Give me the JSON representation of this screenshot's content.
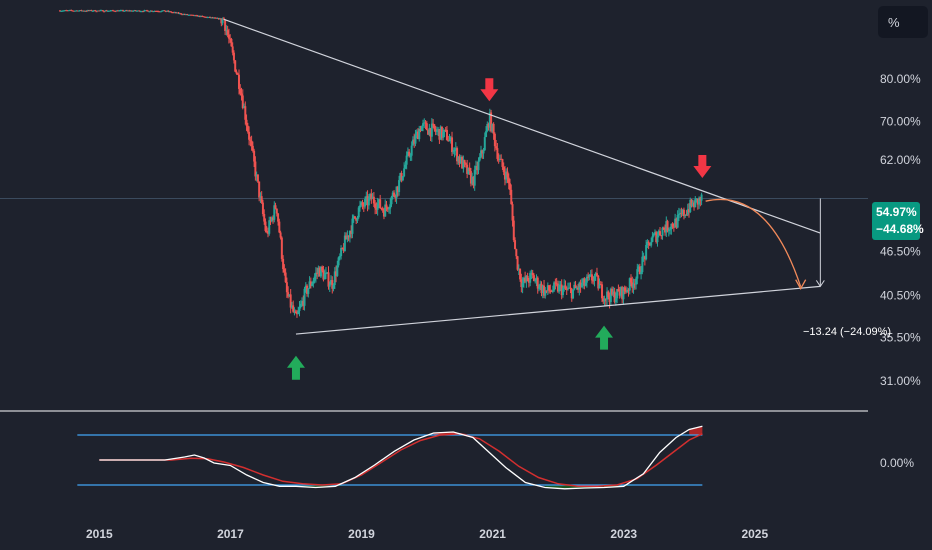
{
  "unit_button": "%",
  "price_badge": {
    "value": "54.97%",
    "change": "−44.68%"
  },
  "projection_label": "−13.24 (−24.09%)",
  "oscillator": {
    "zero_label": "0.00%"
  },
  "colors": {
    "background": "#1e222d",
    "up_candle": "#26a69a",
    "down_candle": "#ef5350",
    "trendline": "#d1d4dc",
    "projection_curve": "#f28a5a",
    "arrow_down": "#f23645",
    "arrow_up": "#22ab5b",
    "osc_fast": "#ffffff",
    "osc_slow": "#d32f2f",
    "osc_band": "#42a5f5",
    "osc_fill_top": "#c62828",
    "osc_fill_bottom": "#1b5e20"
  },
  "chart_data": {
    "type": "candlestick",
    "scale": "log",
    "y_unit": "%",
    "ylim": [
      29,
      100
    ],
    "xlim": [
      2014.4,
      2026.3
    ],
    "y_ticks": [
      {
        "value": 80,
        "label": "80.00%"
      },
      {
        "value": 70,
        "label": "70.00%"
      },
      {
        "value": 62,
        "label": "62.00%"
      },
      {
        "value": 46.5,
        "label": "46.50%"
      },
      {
        "value": 40.5,
        "label": "40.50%"
      },
      {
        "value": 35.5,
        "label": "35.50%"
      },
      {
        "value": 31,
        "label": "31.00%"
      }
    ],
    "x_ticks": [
      {
        "value": 2015,
        "label": "2015"
      },
      {
        "value": 2017,
        "label": "2017"
      },
      {
        "value": 2019,
        "label": "2019"
      },
      {
        "value": 2021,
        "label": "2021"
      },
      {
        "value": 2023,
        "label": "2023"
      },
      {
        "value": 2025,
        "label": "2025"
      }
    ],
    "current_value": 54.97,
    "anchors": [
      [
        2014.4,
        99.2
      ],
      [
        2016.0,
        99.1
      ],
      [
        2016.3,
        98.0
      ],
      [
        2016.9,
        96.5
      ],
      [
        2017.15,
        78
      ],
      [
        2017.35,
        62
      ],
      [
        2017.55,
        49
      ],
      [
        2017.7,
        54
      ],
      [
        2017.85,
        41
      ],
      [
        2018.0,
        37.5
      ],
      [
        2018.15,
        41
      ],
      [
        2018.35,
        44
      ],
      [
        2018.55,
        42
      ],
      [
        2018.75,
        48
      ],
      [
        2018.95,
        53
      ],
      [
        2019.15,
        55
      ],
      [
        2019.35,
        53
      ],
      [
        2019.55,
        57
      ],
      [
        2019.75,
        64
      ],
      [
        2019.9,
        69
      ],
      [
        2020.1,
        68
      ],
      [
        2020.3,
        67
      ],
      [
        2020.5,
        62
      ],
      [
        2020.7,
        58
      ],
      [
        2020.85,
        64
      ],
      [
        2020.95,
        71
      ],
      [
        2021.1,
        62
      ],
      [
        2021.25,
        58
      ],
      [
        2021.35,
        46
      ],
      [
        2021.45,
        42
      ],
      [
        2021.6,
        43
      ],
      [
        2021.8,
        41
      ],
      [
        2022.0,
        41.5
      ],
      [
        2022.2,
        41
      ],
      [
        2022.4,
        42
      ],
      [
        2022.55,
        43
      ],
      [
        2022.7,
        40.5
      ],
      [
        2022.85,
        40.5
      ],
      [
        2023.0,
        41
      ],
      [
        2023.2,
        43
      ],
      [
        2023.4,
        48
      ],
      [
        2023.6,
        50
      ],
      [
        2023.8,
        51
      ],
      [
        2024.0,
        53.5
      ],
      [
        2024.2,
        54.97
      ]
    ],
    "annotations": {
      "upper_trendline": [
        [
          2016.9,
          96.5
        ],
        [
          2026.0,
          49.3
        ]
      ],
      "lower_trendline": [
        [
          2018.0,
          35.9
        ],
        [
          2026.0,
          41.7
        ]
      ],
      "horizontal_line": 54.97,
      "projection_curve": [
        [
          2024.25,
          54.5
        ],
        [
          2025.7,
          41.4
        ]
      ],
      "projection_arrow": {
        "x": 2026.0,
        "from": 54.97,
        "to": 41.7
      },
      "down_arrows": [
        [
          2020.95,
          77
        ],
        [
          2024.2,
          60.5
        ]
      ],
      "up_arrows": [
        [
          2018.0,
          32.3
        ],
        [
          2022.7,
          35.5
        ]
      ]
    },
    "oscillator": {
      "upper_band": 1,
      "lower_band": -1,
      "zero": 0,
      "start": 2015.0,
      "fast": [
        [
          2015.0,
          0
        ],
        [
          2016.0,
          0
        ],
        [
          2016.3,
          0.12
        ],
        [
          2016.45,
          0.2
        ],
        [
          2016.6,
          0.08
        ],
        [
          2016.75,
          -0.12
        ],
        [
          2017.0,
          -0.22
        ],
        [
          2017.25,
          -0.6
        ],
        [
          2017.5,
          -0.9
        ],
        [
          2017.75,
          -1.05
        ],
        [
          2018.0,
          -1.05
        ],
        [
          2018.3,
          -1.1
        ],
        [
          2018.6,
          -1.05
        ],
        [
          2018.9,
          -0.7
        ],
        [
          2019.2,
          -0.2
        ],
        [
          2019.5,
          0.35
        ],
        [
          2019.8,
          0.8
        ],
        [
          2020.1,
          1.08
        ],
        [
          2020.4,
          1.12
        ],
        [
          2020.7,
          0.9
        ],
        [
          2020.95,
          0.3
        ],
        [
          2021.2,
          -0.3
        ],
        [
          2021.5,
          -0.9
        ],
        [
          2021.8,
          -1.1
        ],
        [
          2022.1,
          -1.15
        ],
        [
          2022.4,
          -1.12
        ],
        [
          2022.7,
          -1.1
        ],
        [
          2023.0,
          -1.05
        ],
        [
          2023.3,
          -0.55
        ],
        [
          2023.55,
          0.3
        ],
        [
          2023.8,
          0.9
        ],
        [
          2024.0,
          1.22
        ],
        [
          2024.2,
          1.35
        ]
      ],
      "slow": [
        [
          2015.0,
          0
        ],
        [
          2016.1,
          0
        ],
        [
          2016.4,
          0.07
        ],
        [
          2016.65,
          0.05
        ],
        [
          2016.9,
          -0.08
        ],
        [
          2017.2,
          -0.3
        ],
        [
          2017.5,
          -0.6
        ],
        [
          2017.8,
          -0.85
        ],
        [
          2018.1,
          -0.95
        ],
        [
          2018.4,
          -1.0
        ],
        [
          2018.7,
          -0.95
        ],
        [
          2019.0,
          -0.6
        ],
        [
          2019.3,
          -0.1
        ],
        [
          2019.6,
          0.4
        ],
        [
          2019.9,
          0.78
        ],
        [
          2020.2,
          1.0
        ],
        [
          2020.5,
          1.05
        ],
        [
          2020.8,
          0.85
        ],
        [
          2021.1,
          0.35
        ],
        [
          2021.4,
          -0.25
        ],
        [
          2021.7,
          -0.7
        ],
        [
          2022.0,
          -0.95
        ],
        [
          2022.3,
          -1.05
        ],
        [
          2022.6,
          -1.05
        ],
        [
          2022.9,
          -1.0
        ],
        [
          2023.2,
          -0.75
        ],
        [
          2023.5,
          -0.2
        ],
        [
          2023.8,
          0.4
        ],
        [
          2024.0,
          0.8
        ],
        [
          2024.2,
          1.05
        ]
      ]
    }
  }
}
